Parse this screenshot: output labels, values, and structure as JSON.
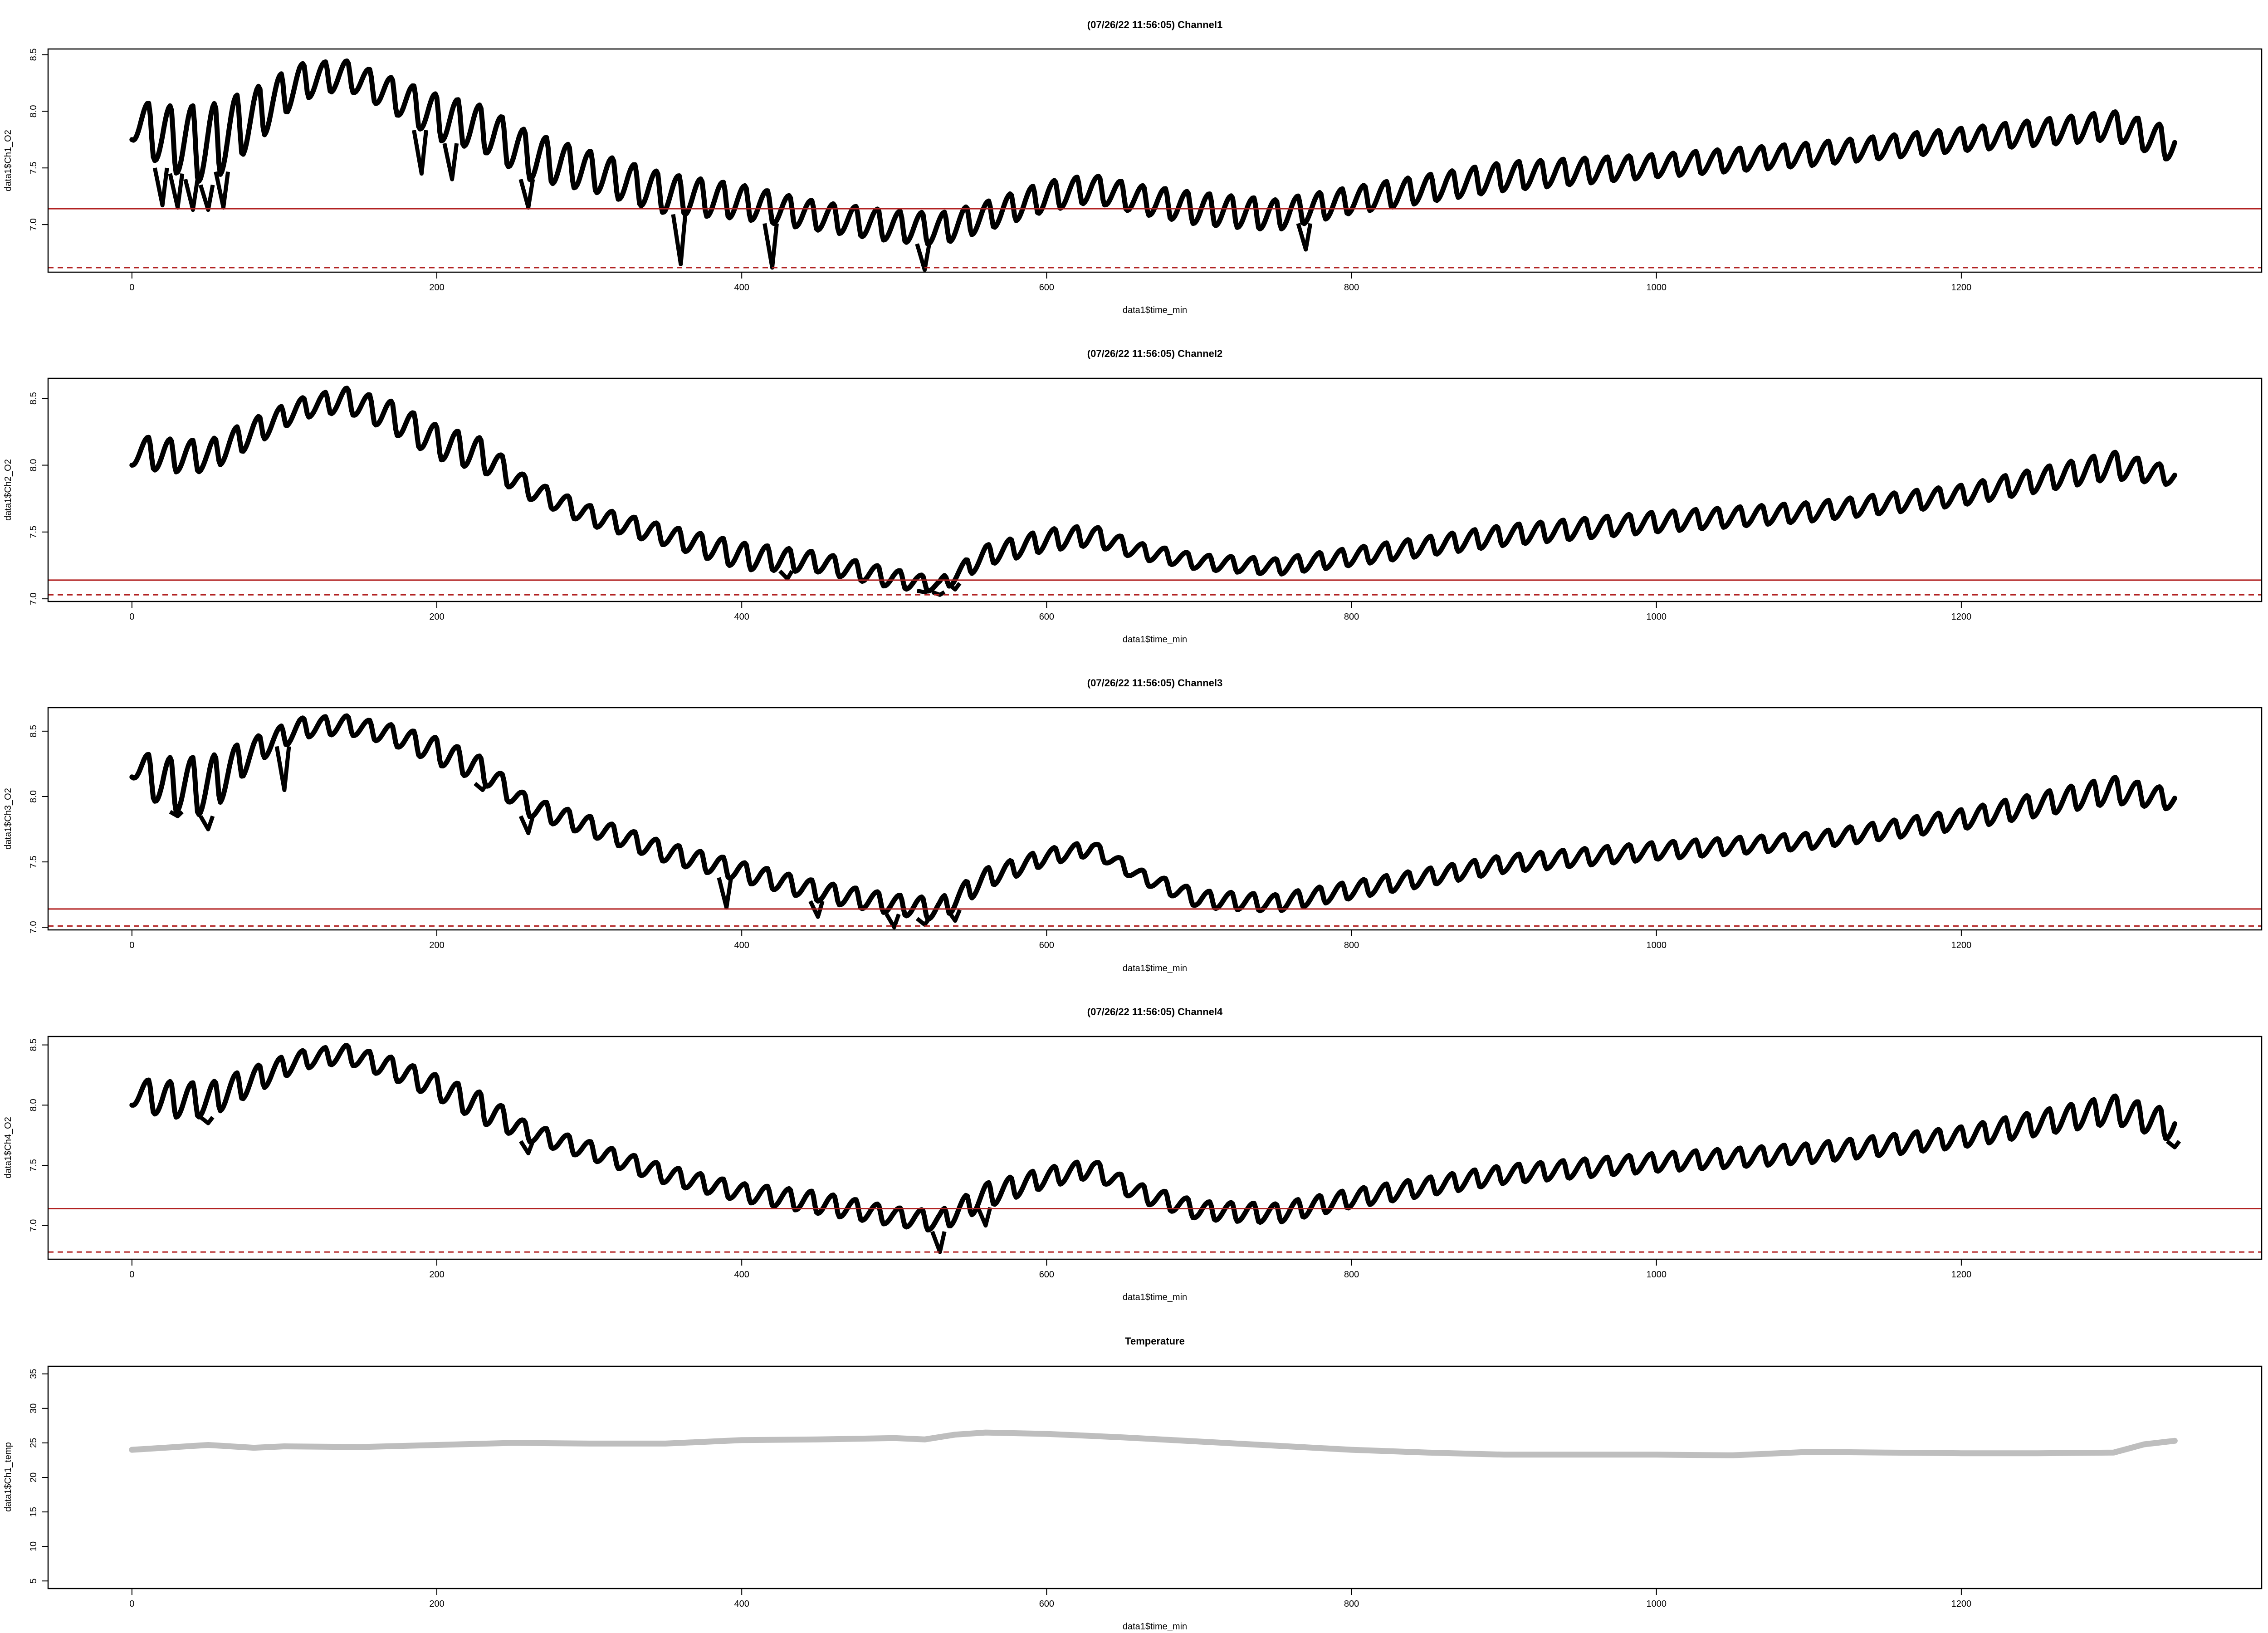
{
  "chart_data": [
    {
      "type": "line",
      "title": "(07/26/22 11:56:05) Channel1",
      "xlabel": "data1$time_min",
      "ylabel": "data1$Ch1_O2",
      "xlim": [
        -55,
        1397
      ],
      "ylim": [
        6.58,
        8.55
      ],
      "xticks": [
        0,
        200,
        400,
        600,
        800,
        1000,
        1200
      ],
      "yticks": [
        7.0,
        7.5,
        8.0,
        8.5
      ],
      "ytick_labels": [
        "7.0",
        "7.5",
        "8.0",
        "8.5"
      ],
      "grid": false,
      "series_color": "#000000",
      "series_style": "thick oscillating trace",
      "x": [
        0,
        20,
        50,
        80,
        110,
        140,
        170,
        200,
        230,
        260,
        300,
        350,
        400,
        450,
        500,
        530,
        560,
        600,
        630,
        660,
        700,
        750,
        800,
        900,
        1000,
        1100,
        1200,
        1300,
        1340
      ],
      "upper": [
        8.1,
        8.05,
        8.05,
        8.2,
        8.42,
        8.45,
        8.3,
        8.15,
        8.05,
        7.82,
        7.65,
        7.45,
        7.35,
        7.2,
        7.12,
        7.1,
        7.2,
        7.38,
        7.44,
        7.35,
        7.28,
        7.22,
        7.33,
        7.55,
        7.62,
        7.72,
        7.85,
        8.0,
        7.85
      ],
      "lower": [
        7.75,
        7.5,
        7.35,
        7.7,
        8.1,
        8.2,
        8.0,
        7.75,
        7.65,
        7.4,
        7.3,
        7.1,
        7.05,
        6.95,
        6.85,
        6.82,
        6.95,
        7.12,
        7.2,
        7.1,
        7.0,
        6.95,
        7.1,
        7.3,
        7.42,
        7.52,
        7.65,
        7.75,
        7.55
      ],
      "dips": [
        [
          20,
          7.17
        ],
        [
          30,
          7.15
        ],
        [
          40,
          7.13
        ],
        [
          50,
          7.13
        ],
        [
          60,
          7.15
        ],
        [
          190,
          7.45
        ],
        [
          210,
          7.4
        ],
        [
          260,
          7.15
        ],
        [
          360,
          6.65
        ],
        [
          420,
          6.62
        ],
        [
          520,
          6.6
        ],
        [
          770,
          6.78
        ]
      ],
      "hline_solid": 7.14,
      "hline_dashed": 6.62,
      "hline_color": "#b22222"
    },
    {
      "type": "line",
      "title": "(07/26/22 11:56:05) Channel2",
      "xlabel": "data1$time_min",
      "ylabel": "data1$Ch2_O2",
      "xlim": [
        -55,
        1397
      ],
      "ylim": [
        6.98,
        8.65
      ],
      "xticks": [
        0,
        200,
        400,
        600,
        800,
        1000,
        1200
      ],
      "yticks": [
        7.0,
        7.5,
        8.0,
        8.5
      ],
      "ytick_labels": [
        "7.0",
        "7.5",
        "8.0",
        "8.5"
      ],
      "grid": false,
      "series_color": "#000000",
      "series_style": "thick oscillating trace",
      "x": [
        0,
        20,
        50,
        80,
        110,
        140,
        170,
        200,
        230,
        260,
        300,
        350,
        400,
        450,
        500,
        530,
        560,
        600,
        630,
        660,
        700,
        750,
        800,
        900,
        1000,
        1100,
        1200,
        1300,
        1340
      ],
      "upper": [
        8.22,
        8.2,
        8.18,
        8.35,
        8.5,
        8.58,
        8.48,
        8.3,
        8.2,
        7.9,
        7.7,
        7.55,
        7.42,
        7.35,
        7.22,
        7.15,
        7.4,
        7.52,
        7.55,
        7.42,
        7.33,
        7.3,
        7.38,
        7.55,
        7.65,
        7.72,
        7.85,
        8.1,
        7.98
      ],
      "lower": [
        8.0,
        7.95,
        7.95,
        8.15,
        8.35,
        8.4,
        8.25,
        8.05,
        7.95,
        7.75,
        7.55,
        7.4,
        7.22,
        7.2,
        7.08,
        7.05,
        7.25,
        7.36,
        7.4,
        7.3,
        7.22,
        7.18,
        7.25,
        7.4,
        7.5,
        7.58,
        7.7,
        7.9,
        7.85
      ],
      "dips": [
        [
          430,
          7.15
        ],
        [
          520,
          7.05
        ],
        [
          530,
          7.03
        ],
        [
          540,
          7.07
        ]
      ],
      "hline_solid": 7.14,
      "hline_dashed": 7.03,
      "hline_color": "#b22222"
    },
    {
      "type": "line",
      "title": "(07/26/22 11:56:05) Channel3",
      "xlabel": "data1$time_min",
      "ylabel": "data1$Ch3_O2",
      "xlim": [
        -55,
        1397
      ],
      "ylim": [
        6.98,
        8.68
      ],
      "xticks": [
        0,
        200,
        400,
        600,
        800,
        1000,
        1200
      ],
      "yticks": [
        7.0,
        7.5,
        8.0,
        8.5
      ],
      "ytick_labels": [
        "7.0",
        "7.5",
        "8.0",
        "8.5"
      ],
      "grid": false,
      "series_color": "#000000",
      "series_style": "thick oscillating trace",
      "x": [
        0,
        20,
        50,
        80,
        110,
        140,
        170,
        200,
        230,
        260,
        300,
        350,
        400,
        450,
        500,
        530,
        560,
        600,
        630,
        660,
        700,
        750,
        800,
        900,
        1000,
        1100,
        1200,
        1300,
        1340
      ],
      "upper": [
        8.35,
        8.3,
        8.3,
        8.45,
        8.6,
        8.62,
        8.55,
        8.45,
        8.3,
        8.0,
        7.85,
        7.65,
        7.5,
        7.35,
        7.25,
        7.22,
        7.45,
        7.6,
        7.66,
        7.45,
        7.28,
        7.25,
        7.35,
        7.55,
        7.65,
        7.72,
        7.9,
        8.15,
        8.05
      ],
      "lower": [
        8.15,
        7.9,
        7.85,
        8.25,
        8.45,
        8.48,
        8.4,
        8.25,
        8.1,
        7.85,
        7.7,
        7.5,
        7.35,
        7.2,
        7.1,
        7.05,
        7.3,
        7.48,
        7.55,
        7.35,
        7.15,
        7.12,
        7.22,
        7.42,
        7.52,
        7.6,
        7.75,
        7.95,
        7.9
      ],
      "dips": [
        [
          30,
          7.85
        ],
        [
          50,
          7.75
        ],
        [
          100,
          8.05
        ],
        [
          230,
          8.05
        ],
        [
          260,
          7.72
        ],
        [
          390,
          7.15
        ],
        [
          450,
          7.08
        ],
        [
          500,
          7.0
        ],
        [
          520,
          7.02
        ],
        [
          540,
          7.05
        ]
      ],
      "hline_solid": 7.14,
      "hline_dashed": 7.01,
      "hline_color": "#b22222"
    },
    {
      "type": "line",
      "title": "(07/26/22 11:56:05) Channel4",
      "xlabel": "data1$time_min",
      "ylabel": "data1$Ch4_O2",
      "xlim": [
        -55,
        1397
      ],
      "ylim": [
        6.72,
        8.57
      ],
      "xticks": [
        0,
        200,
        400,
        600,
        800,
        1000,
        1200
      ],
      "yticks": [
        7.0,
        7.5,
        8.0,
        8.5
      ],
      "ytick_labels": [
        "7.0",
        "7.5",
        "8.0",
        "8.5"
      ],
      "grid": false,
      "series_color": "#000000",
      "series_style": "thick oscillating trace",
      "x": [
        0,
        20,
        50,
        80,
        110,
        140,
        170,
        200,
        230,
        260,
        300,
        350,
        400,
        450,
        500,
        530,
        560,
        600,
        630,
        660,
        700,
        750,
        800,
        900,
        1000,
        1100,
        1200,
        1300,
        1340
      ],
      "upper": [
        8.22,
        8.2,
        8.18,
        8.32,
        8.45,
        8.5,
        8.4,
        8.25,
        8.1,
        7.85,
        7.7,
        7.5,
        7.35,
        7.28,
        7.15,
        7.12,
        7.35,
        7.48,
        7.55,
        7.35,
        7.2,
        7.18,
        7.3,
        7.5,
        7.6,
        7.68,
        7.82,
        8.08,
        7.95
      ],
      "lower": [
        8.0,
        7.9,
        7.9,
        8.1,
        8.3,
        8.35,
        8.22,
        8.05,
        7.85,
        7.7,
        7.55,
        7.35,
        7.2,
        7.1,
        7.0,
        6.95,
        7.15,
        7.32,
        7.4,
        7.2,
        7.05,
        7.02,
        7.15,
        7.35,
        7.45,
        7.52,
        7.65,
        7.85,
        7.7
      ],
      "dips": [
        [
          50,
          7.85
        ],
        [
          260,
          7.6
        ],
        [
          530,
          6.78
        ],
        [
          560,
          7.0
        ],
        [
          1340,
          7.65
        ]
      ],
      "hline_solid": 7.14,
      "hline_dashed": 6.78,
      "hline_color": "#b22222"
    },
    {
      "type": "line",
      "title": "Temperature",
      "xlabel": "data1$time_min",
      "ylabel": "data1$Ch1_temp",
      "xlim": [
        -55,
        1397
      ],
      "ylim": [
        3.9,
        36.1
      ],
      "xticks": [
        0,
        200,
        400,
        600,
        800,
        1000,
        1200
      ],
      "yticks": [
        5,
        10,
        15,
        20,
        25,
        30,
        35
      ],
      "ytick_labels": [
        "5",
        "10",
        "15",
        "20",
        "25",
        "30",
        "35"
      ],
      "grid": false,
      "series_color": "#bebebe",
      "series_style": "thick line",
      "x": [
        0,
        50,
        80,
        100,
        150,
        200,
        250,
        300,
        350,
        400,
        450,
        500,
        520,
        540,
        560,
        600,
        650,
        700,
        750,
        800,
        850,
        900,
        950,
        1000,
        1050,
        1100,
        1150,
        1200,
        1250,
        1300,
        1320,
        1340
      ],
      "y": [
        24.0,
        24.7,
        24.3,
        24.5,
        24.4,
        24.7,
        25.0,
        24.9,
        24.9,
        25.4,
        25.5,
        25.7,
        25.5,
        26.2,
        26.5,
        26.3,
        25.8,
        25.2,
        24.6,
        24.0,
        23.6,
        23.3,
        23.3,
        23.3,
        23.2,
        23.7,
        23.6,
        23.5,
        23.5,
        23.6,
        24.8,
        25.3
      ]
    }
  ]
}
